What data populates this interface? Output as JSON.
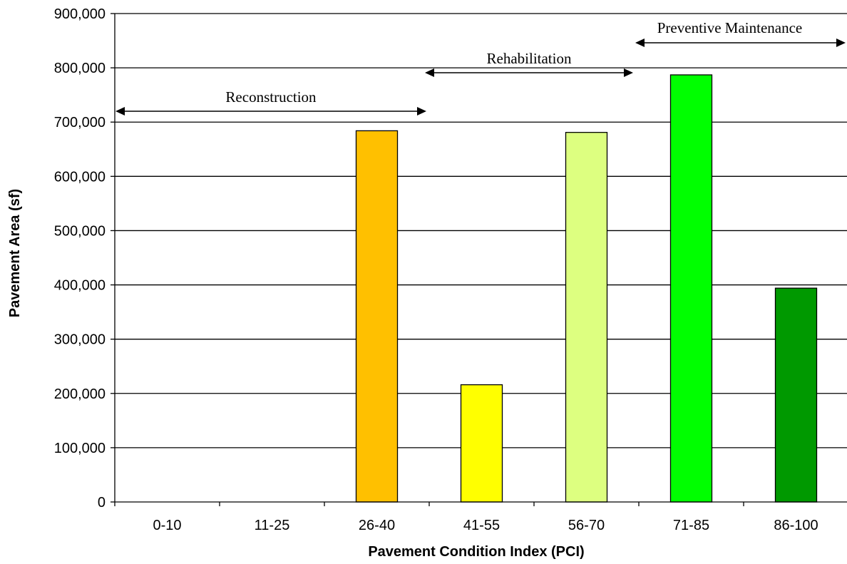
{
  "chart_data": {
    "type": "bar",
    "title": "",
    "xlabel": "Pavement Condition Index (PCI)",
    "ylabel": "Pavement Area (sf)",
    "categories": [
      "0-10",
      "11-25",
      "26-40",
      "41-55",
      "56-70",
      "71-85",
      "86-100"
    ],
    "values": [
      0,
      0,
      684000,
      216000,
      681000,
      787000,
      394000
    ],
    "bar_colors": [
      "#FFC000",
      "#FFC000",
      "#FFC000",
      "#FFFF00",
      "#DDFF80",
      "#00FF00",
      "#009900"
    ],
    "ylim": [
      0,
      900000
    ],
    "y_ticks": [
      0,
      100000,
      200000,
      300000,
      400000,
      500000,
      600000,
      700000,
      800000,
      900000
    ],
    "y_tick_labels": [
      "0",
      "100,000",
      "200,000",
      "300,000",
      "400,000",
      "500,000",
      "600,000",
      "700,000",
      "800,000",
      "900,000"
    ],
    "grid": true,
    "legend": "none",
    "annotations": [
      {
        "text": "Reconstruction",
        "from_category": 0,
        "to_category": 2
      },
      {
        "text": "Rehabilitation",
        "from_category": 3,
        "to_category": 4
      },
      {
        "text": "Preventive Maintenance",
        "from_category": 5,
        "to_category": 6
      }
    ]
  }
}
